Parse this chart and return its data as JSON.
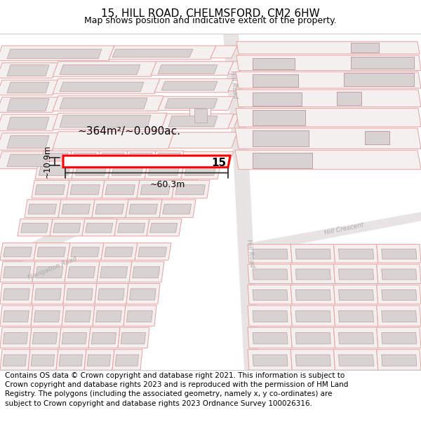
{
  "title": "15, HILL ROAD, CHELMSFORD, CM2 6HW",
  "subtitle": "Map shows position and indicative extent of the property.",
  "footer": "Contains OS data © Crown copyright and database right 2021. This information is subject to Crown copyright and database rights 2023 and is reproduced with the permission of HM Land Registry. The polygons (including the associated geometry, namely x, y co-ordinates) are subject to Crown copyright and database rights 2023 Ordnance Survey 100026316.",
  "area_label": "~364m²/~0.090ac.",
  "width_label": "~60.3m",
  "height_label": "~10.9m",
  "property_number": "15",
  "map_bg": "#f7f4f4",
  "road_fill": "#e8e4e4",
  "plot_edge": "#e8a0a0",
  "plot_fill": "#f5f0f0",
  "building_fill": "#d8d2d2",
  "building_edge": "#c0a0a0",
  "highlight_color": "#ff0000",
  "road_label_color": "#aaaaaa",
  "title_fontsize": 11,
  "subtitle_fontsize": 9,
  "footer_fontsize": 7.5
}
